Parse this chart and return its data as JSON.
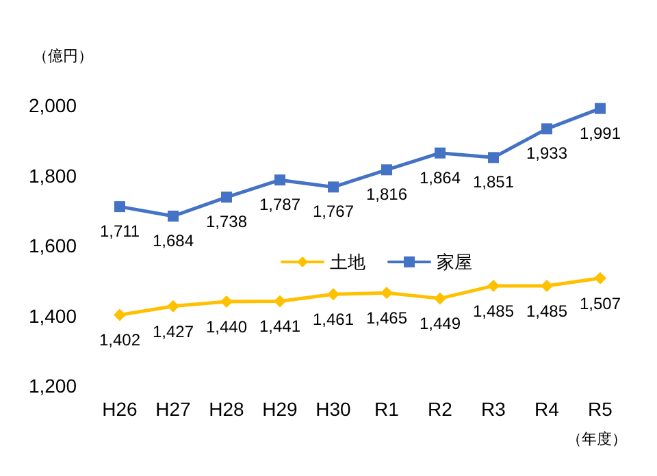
{
  "chart_data": {
    "type": "line",
    "ylabel": "（億円）",
    "xlabel": "（年度）",
    "categories": [
      "H26",
      "H27",
      "H28",
      "H29",
      "H30",
      "R1",
      "R2",
      "R3",
      "R4",
      "R5"
    ],
    "series": [
      {
        "name": "土地",
        "color": "#ffc000",
        "marker": "diamond",
        "values": [
          1402,
          1427,
          1440,
          1441,
          1461,
          1465,
          1449,
          1485,
          1485,
          1507
        ],
        "value_labels": [
          "1,402",
          "1,427",
          "1,440",
          "1,441",
          "1,461",
          "1,465",
          "1,449",
          "1,485",
          "1,485",
          "1,507"
        ]
      },
      {
        "name": "家屋",
        "color": "#4472c4",
        "marker": "square",
        "values": [
          1711,
          1684,
          1738,
          1787,
          1767,
          1816,
          1864,
          1851,
          1933,
          1991
        ],
        "value_labels": [
          "1,711",
          "1,684",
          "1,738",
          "1,787",
          "1,767",
          "1,816",
          "1,864",
          "1,851",
          "1,933",
          "1,991"
        ]
      }
    ],
    "ylim": [
      1200,
      2000
    ],
    "yticks": [
      {
        "value": 1200,
        "label": "1,200"
      },
      {
        "value": 1400,
        "label": "1,400"
      },
      {
        "value": 1600,
        "label": "1,600"
      },
      {
        "value": 1800,
        "label": "1,800"
      },
      {
        "value": 2000,
        "label": "2,000"
      }
    ],
    "grid": false,
    "legend": "center",
    "line_style": "solid"
  }
}
